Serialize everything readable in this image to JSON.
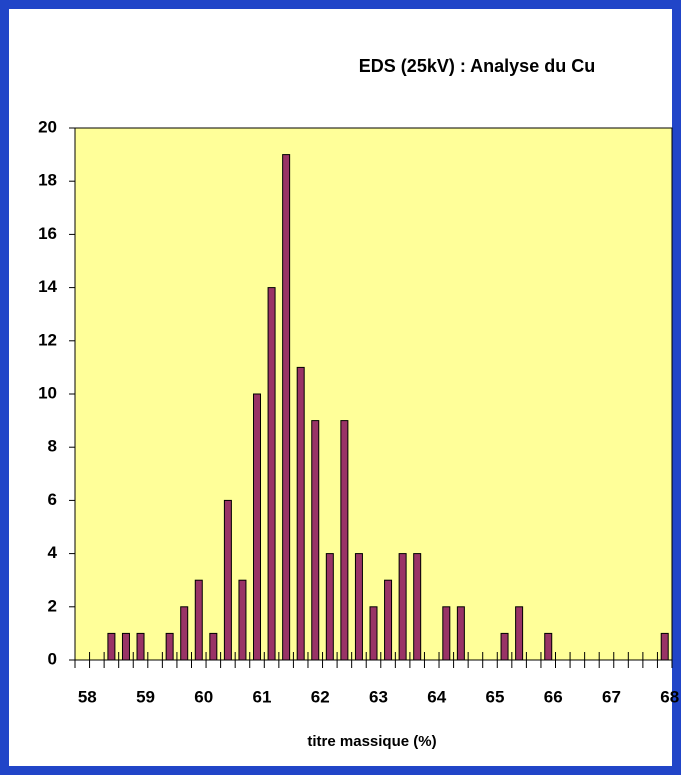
{
  "chart_data": {
    "type": "bar",
    "title": "EDS (25kV) : Analyse du Cu",
    "x_label": "titre massique (%)",
    "categories": [
      "58",
      null,
      null,
      null,
      "59",
      null,
      null,
      null,
      "60",
      null,
      null,
      null,
      "61",
      null,
      null,
      null,
      "62",
      null,
      null,
      null,
      "63",
      null,
      null,
      null,
      "64",
      null,
      null,
      null,
      "65",
      null,
      null,
      null,
      "66",
      null,
      null,
      null,
      "67",
      null,
      null,
      null,
      "68"
    ],
    "values": [
      0,
      0,
      1,
      1,
      1,
      0,
      1,
      2,
      3,
      1,
      6,
      3,
      10,
      14,
      19,
      11,
      9,
      4,
      9,
      4,
      2,
      3,
      4,
      4,
      0,
      2,
      2,
      0,
      0,
      1,
      2,
      0,
      1,
      0,
      0,
      0,
      0,
      0,
      0,
      0,
      1
    ],
    "color": "#993366",
    "plot_background": "#ffff99",
    "ylim": [
      0,
      20
    ],
    "yticks": [
      0,
      2,
      4,
      6,
      8,
      10,
      12,
      14,
      16,
      18,
      20
    ],
    "grid": false
  }
}
